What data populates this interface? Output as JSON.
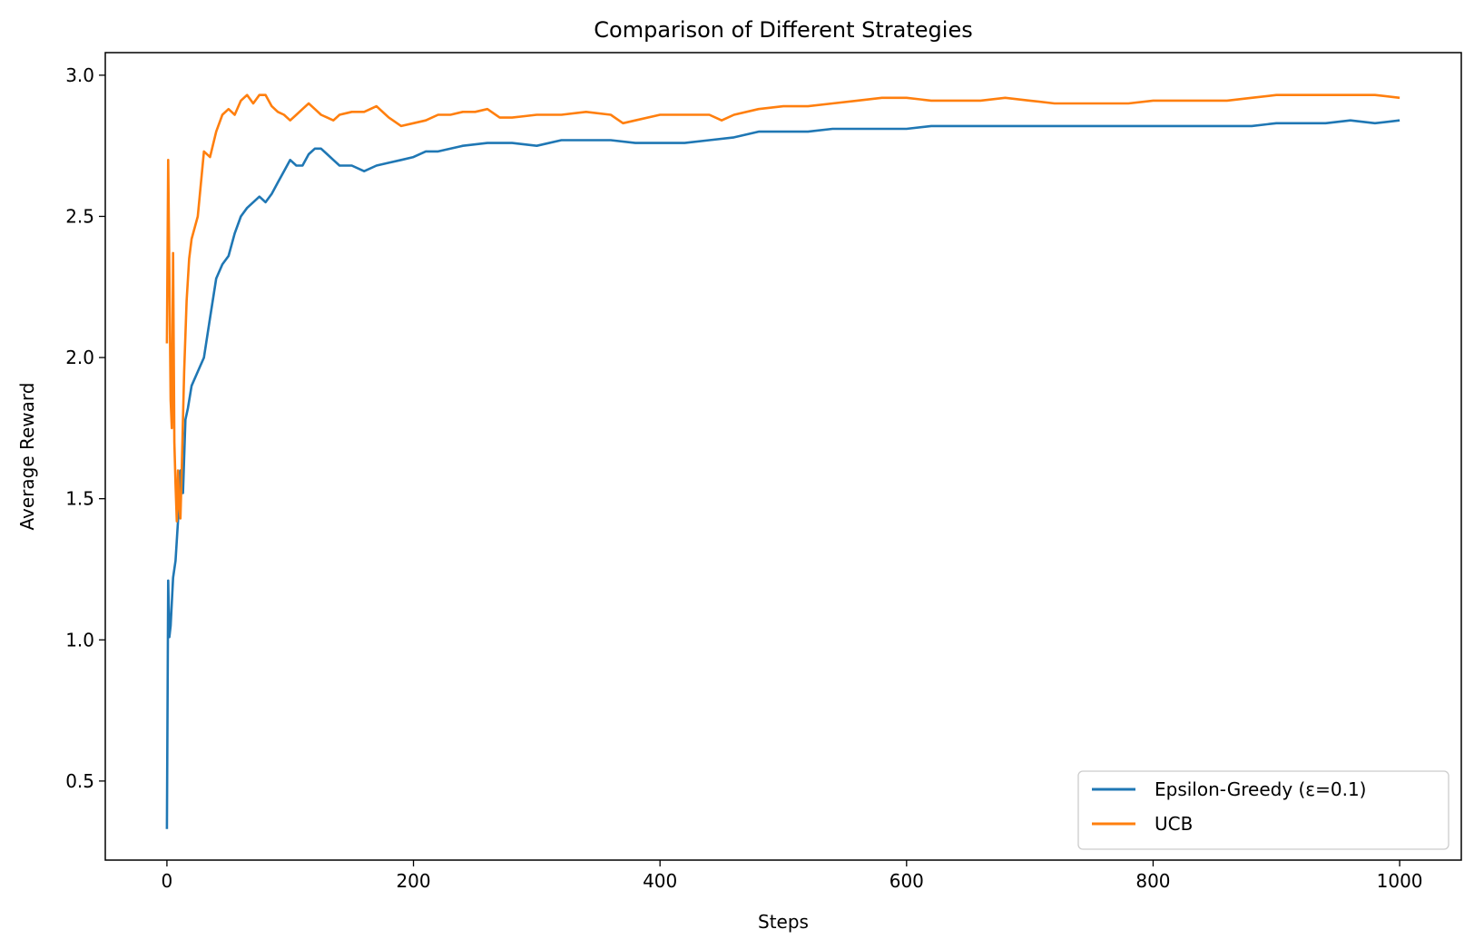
{
  "chart_data": {
    "type": "line",
    "title": "Comparison of Different Strategies",
    "xlabel": "Steps",
    "ylabel": "Average Reward",
    "xlim": [
      -50,
      1050
    ],
    "ylim": [
      0.22,
      3.08
    ],
    "xticks": [
      0,
      200,
      400,
      600,
      800,
      1000
    ],
    "xtick_labels": [
      "0",
      "200",
      "400",
      "600",
      "800",
      "1000"
    ],
    "yticks": [
      0.5,
      1.0,
      1.5,
      2.0,
      2.5,
      3.0
    ],
    "ytick_labels": [
      "0.5",
      "1.0",
      "1.5",
      "2.0",
      "2.5",
      "3.0"
    ],
    "grid": false,
    "legend_position": "lower-right",
    "series": [
      {
        "name": "Epsilon-Greedy (ε=0.1)",
        "color": "#1f77b4",
        "x": [
          0,
          1,
          2,
          3,
          5,
          7,
          9,
          11,
          13,
          15,
          17,
          20,
          25,
          30,
          35,
          40,
          45,
          50,
          55,
          60,
          65,
          70,
          75,
          80,
          85,
          90,
          95,
          100,
          105,
          110,
          115,
          120,
          125,
          130,
          135,
          140,
          150,
          160,
          170,
          180,
          190,
          200,
          210,
          220,
          240,
          260,
          280,
          300,
          320,
          340,
          360,
          380,
          400,
          420,
          440,
          460,
          480,
          500,
          520,
          540,
          560,
          580,
          600,
          620,
          640,
          660,
          680,
          700,
          720,
          740,
          760,
          780,
          800,
          820,
          840,
          860,
          880,
          900,
          920,
          940,
          960,
          980,
          1000
        ],
        "values": [
          0.33,
          1.21,
          1.01,
          1.05,
          1.22,
          1.28,
          1.42,
          1.6,
          1.52,
          1.78,
          1.82,
          1.9,
          1.95,
          2.0,
          2.14,
          2.28,
          2.33,
          2.36,
          2.44,
          2.5,
          2.53,
          2.55,
          2.57,
          2.55,
          2.58,
          2.62,
          2.66,
          2.7,
          2.68,
          2.68,
          2.72,
          2.74,
          2.74,
          2.72,
          2.7,
          2.68,
          2.68,
          2.66,
          2.68,
          2.69,
          2.7,
          2.71,
          2.73,
          2.73,
          2.75,
          2.76,
          2.76,
          2.75,
          2.77,
          2.77,
          2.77,
          2.76,
          2.76,
          2.76,
          2.77,
          2.78,
          2.8,
          2.8,
          2.8,
          2.81,
          2.81,
          2.81,
          2.81,
          2.82,
          2.82,
          2.82,
          2.82,
          2.82,
          2.82,
          2.82,
          2.82,
          2.82,
          2.82,
          2.82,
          2.82,
          2.82,
          2.82,
          2.83,
          2.83,
          2.83,
          2.84,
          2.83,
          2.84
        ]
      },
      {
        "name": "UCB",
        "color": "#ff7f0e",
        "x": [
          0,
          1,
          2,
          3,
          4,
          5,
          6,
          7,
          8,
          9,
          10,
          11,
          12,
          14,
          16,
          18,
          20,
          25,
          30,
          35,
          40,
          45,
          50,
          55,
          60,
          65,
          70,
          75,
          80,
          85,
          90,
          95,
          100,
          105,
          110,
          115,
          120,
          125,
          130,
          135,
          140,
          150,
          160,
          170,
          180,
          190,
          200,
          210,
          220,
          230,
          240,
          250,
          260,
          270,
          280,
          300,
          320,
          340,
          360,
          370,
          380,
          400,
          420,
          440,
          450,
          460,
          480,
          500,
          520,
          540,
          560,
          580,
          600,
          620,
          640,
          660,
          680,
          700,
          720,
          740,
          760,
          780,
          800,
          820,
          840,
          860,
          880,
          900,
          920,
          940,
          960,
          980,
          1000
        ],
        "values": [
          2.05,
          2.7,
          2.3,
          1.85,
          1.75,
          2.37,
          1.7,
          1.55,
          1.42,
          1.6,
          1.47,
          1.43,
          1.6,
          1.95,
          2.2,
          2.35,
          2.42,
          2.5,
          2.73,
          2.71,
          2.8,
          2.86,
          2.88,
          2.86,
          2.91,
          2.93,
          2.9,
          2.93,
          2.93,
          2.89,
          2.87,
          2.86,
          2.84,
          2.86,
          2.88,
          2.9,
          2.88,
          2.86,
          2.85,
          2.84,
          2.86,
          2.87,
          2.87,
          2.89,
          2.85,
          2.82,
          2.83,
          2.84,
          2.86,
          2.86,
          2.87,
          2.87,
          2.88,
          2.85,
          2.85,
          2.86,
          2.86,
          2.87,
          2.86,
          2.83,
          2.84,
          2.86,
          2.86,
          2.86,
          2.84,
          2.86,
          2.88,
          2.89,
          2.89,
          2.9,
          2.91,
          2.92,
          2.92,
          2.91,
          2.91,
          2.91,
          2.92,
          2.91,
          2.9,
          2.9,
          2.9,
          2.9,
          2.91,
          2.91,
          2.91,
          2.91,
          2.92,
          2.93,
          2.93,
          2.93,
          2.93,
          2.93,
          2.92
        ]
      }
    ]
  }
}
